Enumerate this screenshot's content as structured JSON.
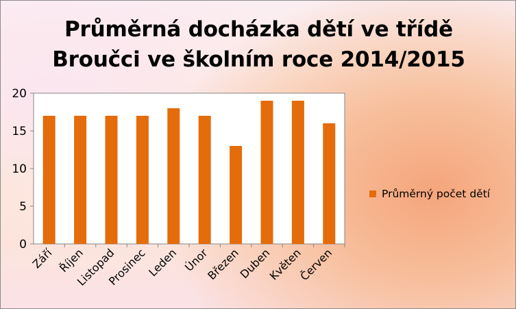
{
  "chart_data": {
    "type": "bar",
    "title": [
      "Průměrná docházka dětí ve třídě",
      "Broučci ve školním roce 2014/2015"
    ],
    "categories": [
      "Září",
      "Říjen",
      "Listopad",
      "Prosinec",
      "Leden",
      "Únor",
      "Březen",
      "Duben",
      "Květen",
      "Červen"
    ],
    "series": [
      {
        "name": "Průměrný počet dětí",
        "values": [
          17,
          17,
          17,
          17,
          18,
          17,
          13,
          19,
          19,
          16
        ],
        "color": "#e46c0a"
      }
    ],
    "ylim": [
      0,
      20
    ],
    "yticks": [
      "0",
      "5",
      "10",
      "15",
      "20"
    ],
    "grid": false,
    "legend": "right"
  }
}
